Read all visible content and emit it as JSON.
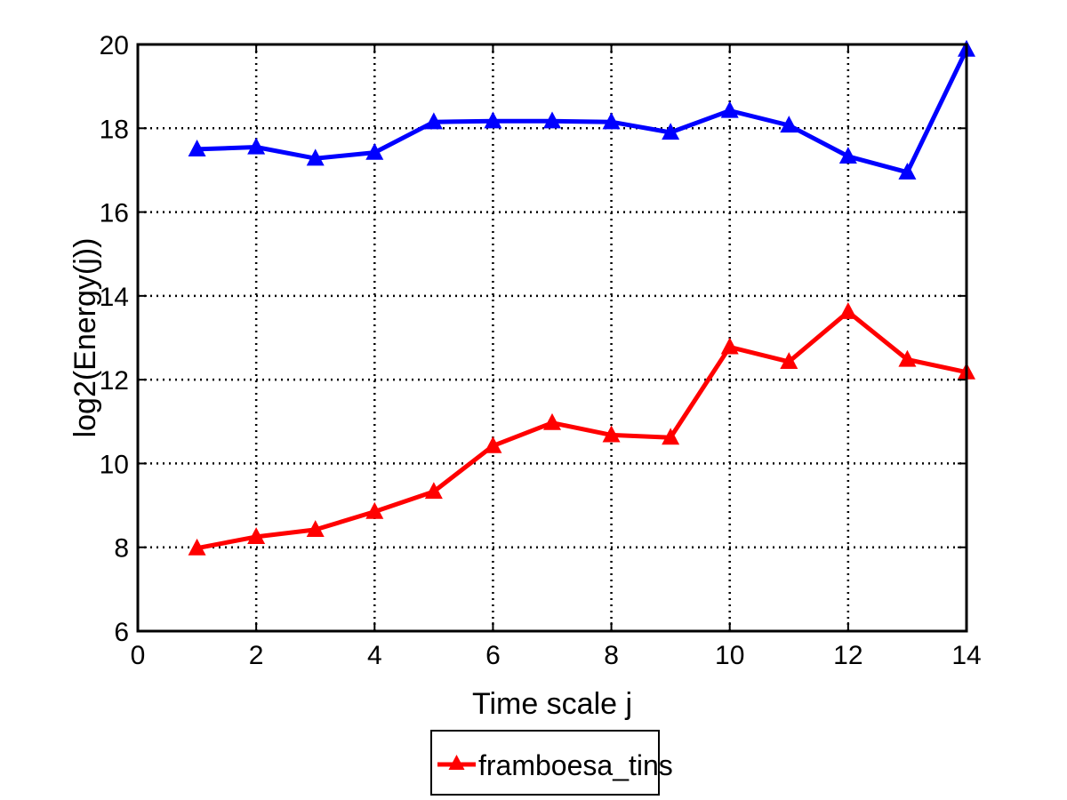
{
  "chart_data": {
    "type": "line",
    "xlabel": "Time scale j",
    "ylabel": "log2(Energy(j))",
    "xlim": [
      0,
      14
    ],
    "ylim": [
      6,
      20
    ],
    "xticks": [
      "0",
      "2",
      "4",
      "6",
      "8",
      "10",
      "12",
      "14"
    ],
    "yticks": [
      "6",
      "8",
      "10",
      "12",
      "14",
      "16",
      "18",
      "20"
    ],
    "grid": true,
    "legend": {
      "placement": "bottom-center",
      "entries": [
        "framboesa_tins"
      ]
    },
    "x": [
      1,
      2,
      3,
      4,
      5,
      6,
      7,
      8,
      9,
      10,
      11,
      12,
      13,
      14
    ],
    "series": [
      {
        "color": "#0000ff",
        "marker": "triangle",
        "values": [
          17.5,
          17.55,
          17.28,
          17.42,
          18.15,
          18.17,
          18.17,
          18.15,
          17.9,
          18.42,
          18.07,
          17.33,
          16.95,
          19.88
        ]
      },
      {
        "name": "framboesa_tins",
        "color": "#ff0000",
        "marker": "triangle",
        "values": [
          7.98,
          8.25,
          8.42,
          8.85,
          9.33,
          10.42,
          10.97,
          10.68,
          10.62,
          12.78,
          12.43,
          13.62,
          12.48,
          12.18
        ]
      }
    ]
  }
}
